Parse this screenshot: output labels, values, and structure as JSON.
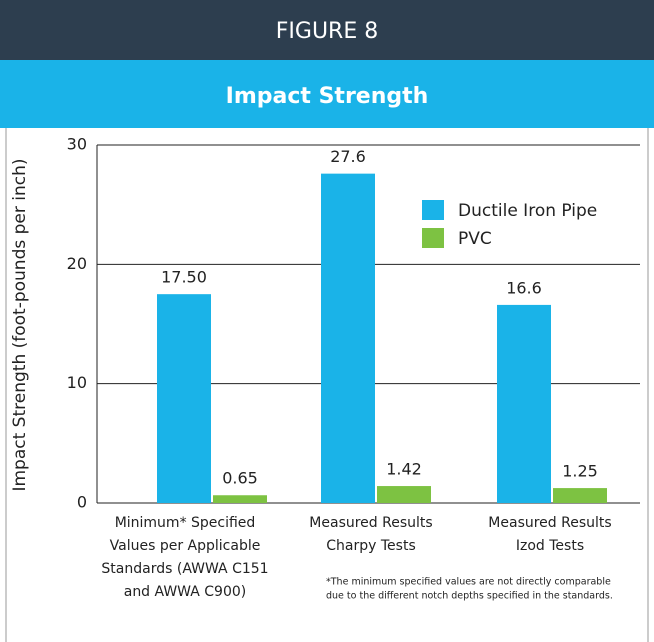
{
  "header": {
    "figure": "FIGURE 8"
  },
  "chart_data": {
    "type": "bar",
    "title": "Impact Strength",
    "y_label": "Impact Strength (foot-pounds per inch)",
    "categories": [
      [
        "Minimum* Specified",
        "Values per Applicable",
        "Standards (AWWA C151",
        "and AWWA C900)"
      ],
      [
        "Measured Results",
        "Charpy Tests"
      ],
      [
        "Measured Results",
        "Izod Tests"
      ]
    ],
    "series": [
      {
        "name": "Ductile Iron Pipe",
        "color": "#1ab3e8",
        "values": [
          17.5,
          27.6,
          16.6
        ],
        "value_labels": [
          "17.50",
          "27.6",
          "16.6"
        ]
      },
      {
        "name": "PVC",
        "color": "#7dc242",
        "values": [
          0.65,
          1.42,
          1.25
        ],
        "value_labels": [
          "0.65",
          "1.42",
          "1.25"
        ]
      }
    ],
    "ylim": [
      0,
      30
    ],
    "yticks": [
      0,
      10,
      20,
      30
    ],
    "grid": true,
    "footnote": [
      "*The minimum specified values are not directly comparable",
      "due to the different notch depths specified in the standards."
    ]
  }
}
